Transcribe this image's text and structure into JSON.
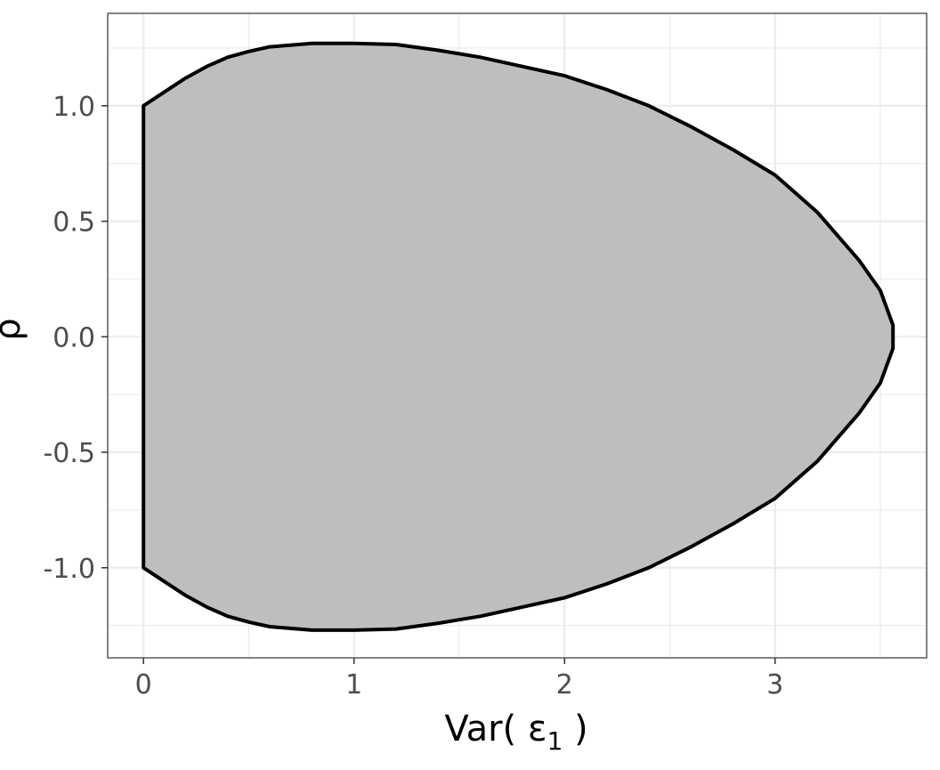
{
  "chart_data": {
    "type": "area",
    "title": "",
    "xlabel": {
      "prefix": "Var( ",
      "symbol": "ε",
      "subscript": "1",
      "suffix": " )"
    },
    "ylabel": "ρ",
    "xlim": [
      -0.17,
      3.72
    ],
    "ylim": [
      -1.39,
      1.4
    ],
    "x_ticks": [
      0,
      1,
      2,
      3
    ],
    "x_tick_labels": [
      "0",
      "1",
      "2",
      "3"
    ],
    "y_ticks": [
      -1.0,
      -0.5,
      0.0,
      0.5,
      1.0
    ],
    "y_tick_labels": [
      "-1.0",
      "-0.5",
      "0.0",
      "0.5",
      "1.0"
    ],
    "grid": true,
    "fill_color": "#bebebe",
    "outline_color": "#000000",
    "grid_color": "#ebebeb",
    "region_boundary_upper": [
      {
        "x": 0.0,
        "y": 1.0
      },
      {
        "x": 0.1,
        "y": 1.06
      },
      {
        "x": 0.2,
        "y": 1.12
      },
      {
        "x": 0.3,
        "y": 1.17
      },
      {
        "x": 0.4,
        "y": 1.21
      },
      {
        "x": 0.5,
        "y": 1.235
      },
      {
        "x": 0.6,
        "y": 1.255
      },
      {
        "x": 0.8,
        "y": 1.27
      },
      {
        "x": 1.0,
        "y": 1.27
      },
      {
        "x": 1.2,
        "y": 1.265
      },
      {
        "x": 1.4,
        "y": 1.24
      },
      {
        "x": 1.6,
        "y": 1.21
      },
      {
        "x": 1.8,
        "y": 1.17
      },
      {
        "x": 2.0,
        "y": 1.13
      },
      {
        "x": 2.2,
        "y": 1.07
      },
      {
        "x": 2.4,
        "y": 1.0
      },
      {
        "x": 2.6,
        "y": 0.91
      },
      {
        "x": 2.8,
        "y": 0.81
      },
      {
        "x": 3.0,
        "y": 0.7
      },
      {
        "x": 3.2,
        "y": 0.54
      },
      {
        "x": 3.4,
        "y": 0.33
      },
      {
        "x": 3.5,
        "y": 0.2
      },
      {
        "x": 3.56,
        "y": 0.05
      },
      {
        "x": 3.56,
        "y": 0.0
      }
    ]
  }
}
